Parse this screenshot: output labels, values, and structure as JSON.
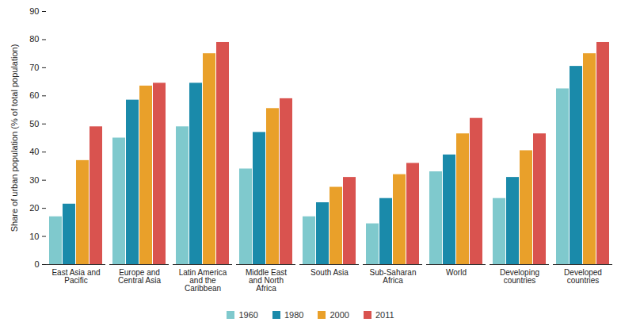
{
  "chart_data": {
    "type": "bar",
    "y_label": "Share of urban population (% of total population)",
    "categories": [
      "East Asia and Pacific",
      "Europe and Central Asia",
      "Latin America and the Caribbean",
      "Middle East and North Africa",
      "South Asia",
      "Sub-Saharan Africa",
      "World",
      "Developing countries",
      "Developed countries"
    ],
    "series": [
      {
        "name": "1960",
        "color": "#7fc9cd",
        "values": [
          17,
          45,
          49,
          34,
          17,
          14.5,
          33,
          23.5,
          62.5
        ]
      },
      {
        "name": "1980",
        "color": "#1a8aaa",
        "values": [
          21.5,
          58.5,
          64.5,
          47,
          22,
          23.5,
          39,
          31,
          70.5
        ]
      },
      {
        "name": "2000",
        "color": "#e9a02a",
        "values": [
          37,
          63.5,
          75,
          55.5,
          27.5,
          32,
          46.5,
          40.5,
          75
        ]
      },
      {
        "name": "2011",
        "color": "#d9534f",
        "values": [
          49,
          64.5,
          79,
          59,
          31,
          36,
          52,
          46.5,
          79
        ]
      }
    ],
    "ylim": [
      0,
      90
    ],
    "yticks": [
      0,
      10,
      20,
      30,
      40,
      50,
      60,
      70,
      80,
      90
    ],
    "grid": false,
    "legend": "bottom"
  }
}
